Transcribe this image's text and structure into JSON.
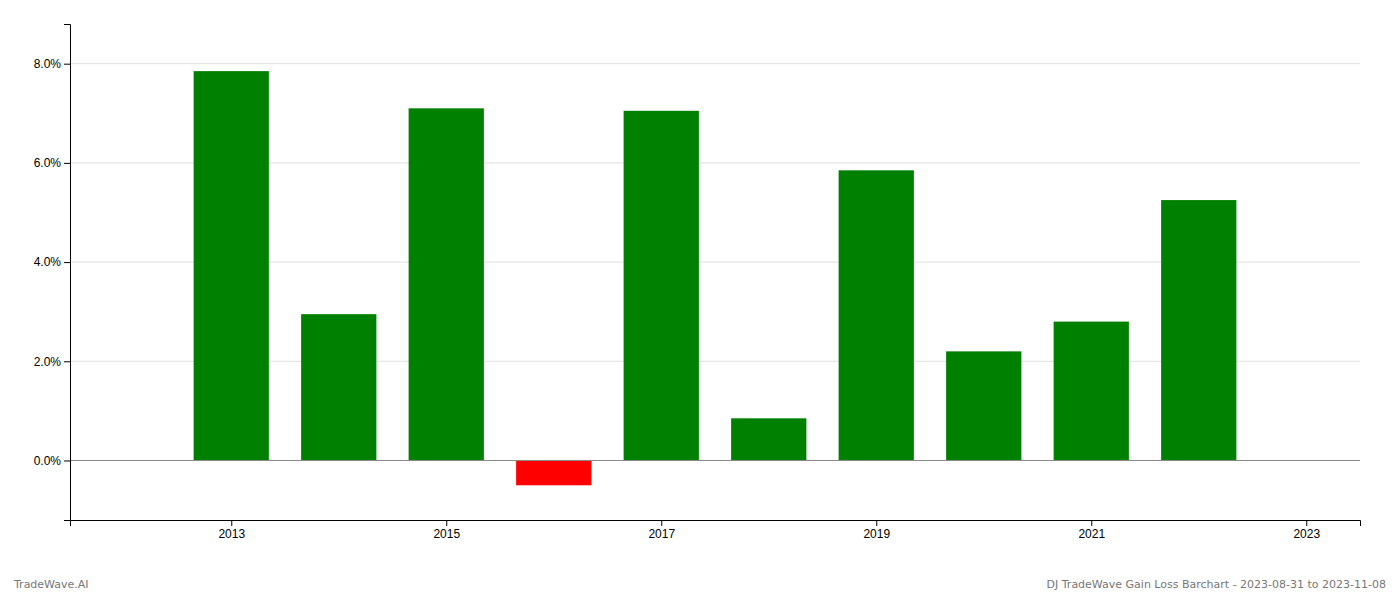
{
  "chart_data": {
    "type": "bar",
    "x": [
      2013,
      2014,
      2015,
      2016,
      2017,
      2018,
      2019,
      2020,
      2021,
      2022
    ],
    "values": [
      0.0785,
      0.0295,
      0.071,
      -0.005,
      0.0705,
      0.0085,
      0.0585,
      0.022,
      0.028,
      0.0525
    ],
    "colors": [
      "#008000",
      "#008000",
      "#008000",
      "#ff0000",
      "#008000",
      "#008000",
      "#008000",
      "#008000",
      "#008000",
      "#008000"
    ],
    "xlim": [
      2011.5,
      2023.5
    ],
    "xticks": [
      2013,
      2015,
      2017,
      2019,
      2021,
      2023
    ],
    "ylim": [
      -0.012,
      0.088
    ],
    "yticks": [
      {
        "value": 0.0,
        "label": "0.0%"
      },
      {
        "value": 0.02,
        "label": "2.0%"
      },
      {
        "value": 0.04,
        "label": "4.0%"
      },
      {
        "value": 0.06,
        "label": "6.0%"
      },
      {
        "value": 0.08,
        "label": "8.0%"
      }
    ],
    "grid": true,
    "annotations": [
      "TradeWave.AI",
      "DJ TradeWave Gain Loss Barchart - 2023-08-31 to 2023-11-08"
    ]
  }
}
